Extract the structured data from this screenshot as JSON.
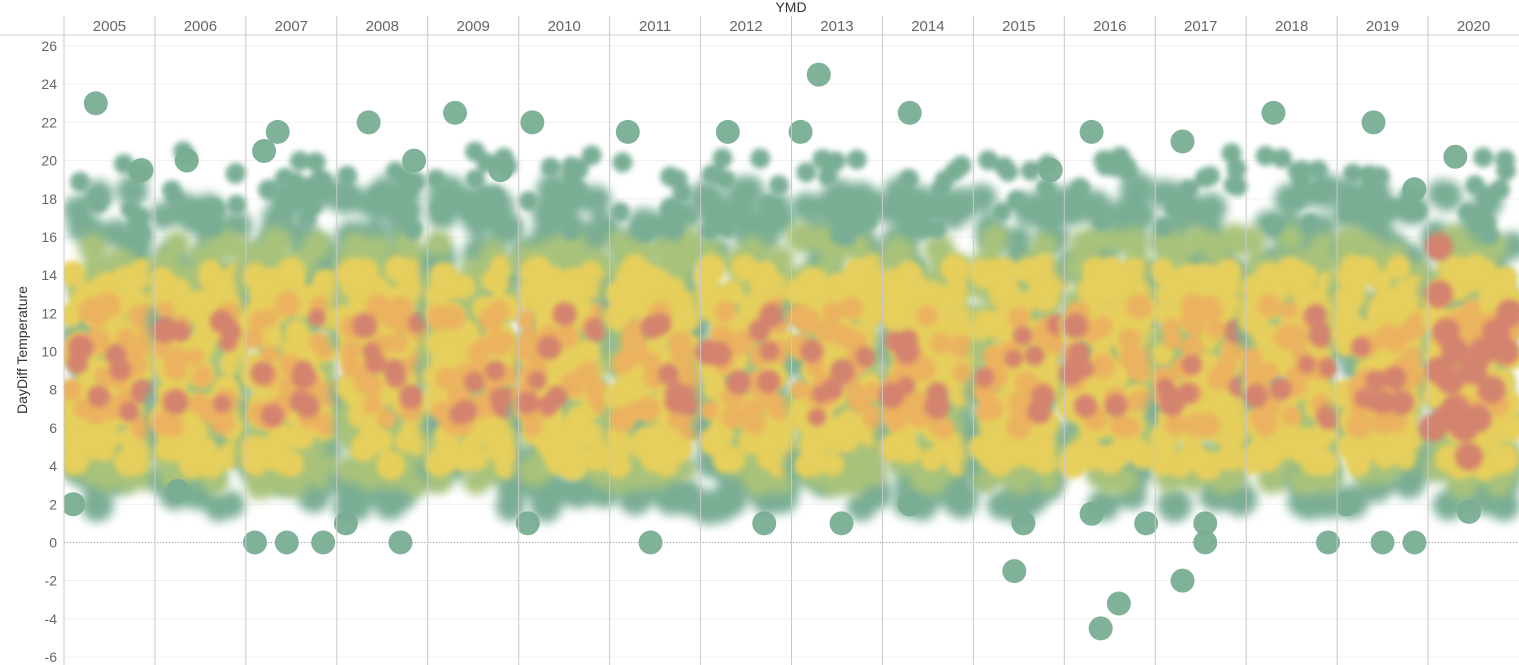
{
  "chart_data": {
    "type": "heatmap",
    "title": "",
    "xlabel": "YMD",
    "ylabel": "DayDiff Temperature",
    "ylim": [
      -6,
      26
    ],
    "yticks": [
      26,
      24,
      22,
      20,
      18,
      16,
      14,
      12,
      10,
      8,
      6,
      4,
      2,
      0,
      -2,
      -4,
      -6
    ],
    "years": [
      "2005",
      "2006",
      "2007",
      "2008",
      "2009",
      "2010",
      "2011",
      "2012",
      "2013",
      "2014",
      "2015",
      "2016",
      "2017",
      "2018",
      "2019",
      "2020"
    ],
    "zero_line": 0,
    "density_colors": [
      "#79ad94",
      "#a8c27a",
      "#e6cf5c",
      "#ebb25e",
      "#d4836e"
    ],
    "outliers": [
      {
        "year": "2005",
        "pos": 0.1,
        "value": 2.0
      },
      {
        "year": "2005",
        "pos": 0.35,
        "value": 23.0
      },
      {
        "year": "2005",
        "pos": 0.85,
        "value": 19.5
      },
      {
        "year": "2006",
        "pos": 0.35,
        "value": 20.0
      },
      {
        "year": "2006",
        "pos": 0.25,
        "value": 2.7
      },
      {
        "year": "2007",
        "pos": 0.1,
        "value": 0.0
      },
      {
        "year": "2007",
        "pos": 0.45,
        "value": 0.0
      },
      {
        "year": "2007",
        "pos": 0.85,
        "value": 0.0
      },
      {
        "year": "2007",
        "pos": 0.35,
        "value": 21.5
      },
      {
        "year": "2007",
        "pos": 0.2,
        "value": 20.5
      },
      {
        "year": "2008",
        "pos": 0.1,
        "value": 1.0
      },
      {
        "year": "2008",
        "pos": 0.7,
        "value": 0.0
      },
      {
        "year": "2008",
        "pos": 0.35,
        "value": 22.0
      },
      {
        "year": "2008",
        "pos": 0.85,
        "value": 20.0
      },
      {
        "year": "2009",
        "pos": 0.3,
        "value": 22.5
      },
      {
        "year": "2009",
        "pos": 0.8,
        "value": 19.5
      },
      {
        "year": "2010",
        "pos": 0.15,
        "value": 22.0
      },
      {
        "year": "2010",
        "pos": 0.1,
        "value": 1.0
      },
      {
        "year": "2011",
        "pos": 0.45,
        "value": 0.0
      },
      {
        "year": "2011",
        "pos": 0.2,
        "value": 21.5
      },
      {
        "year": "2012",
        "pos": 0.7,
        "value": 1.0
      },
      {
        "year": "2012",
        "pos": 0.3,
        "value": 21.5
      },
      {
        "year": "2013",
        "pos": 0.3,
        "value": 24.5
      },
      {
        "year": "2013",
        "pos": 0.55,
        "value": 1.0
      },
      {
        "year": "2013",
        "pos": 0.1,
        "value": 21.5
      },
      {
        "year": "2014",
        "pos": 0.3,
        "value": 2.0
      },
      {
        "year": "2014",
        "pos": 0.3,
        "value": 22.5
      },
      {
        "year": "2015",
        "pos": 0.45,
        "value": -1.5
      },
      {
        "year": "2015",
        "pos": 0.55,
        "value": 1.0
      },
      {
        "year": "2015",
        "pos": 0.85,
        "value": 19.5
      },
      {
        "year": "2016",
        "pos": 0.3,
        "value": 1.5
      },
      {
        "year": "2016",
        "pos": 0.4,
        "value": -4.5
      },
      {
        "year": "2016",
        "pos": 0.6,
        "value": -3.2
      },
      {
        "year": "2016",
        "pos": 0.9,
        "value": 1.0
      },
      {
        "year": "2016",
        "pos": 0.3,
        "value": 21.5
      },
      {
        "year": "2017",
        "pos": 0.3,
        "value": -2.0
      },
      {
        "year": "2017",
        "pos": 0.55,
        "value": 0.0
      },
      {
        "year": "2017",
        "pos": 0.55,
        "value": 1.0
      },
      {
        "year": "2017",
        "pos": 0.3,
        "value": 21.0
      },
      {
        "year": "2018",
        "pos": 0.9,
        "value": 0.0
      },
      {
        "year": "2018",
        "pos": 0.3,
        "value": 22.5
      },
      {
        "year": "2019",
        "pos": 0.1,
        "value": 2.0
      },
      {
        "year": "2019",
        "pos": 0.5,
        "value": 0.0
      },
      {
        "year": "2019",
        "pos": 0.85,
        "value": 0.0
      },
      {
        "year": "2019",
        "pos": 0.4,
        "value": 22.0
      },
      {
        "year": "2019",
        "pos": 0.85,
        "value": 18.5
      },
      {
        "year": "2020",
        "pos": 0.3,
        "value": 20.2
      },
      {
        "year": "2020",
        "pos": 0.45,
        "value": 1.6
      }
    ]
  }
}
